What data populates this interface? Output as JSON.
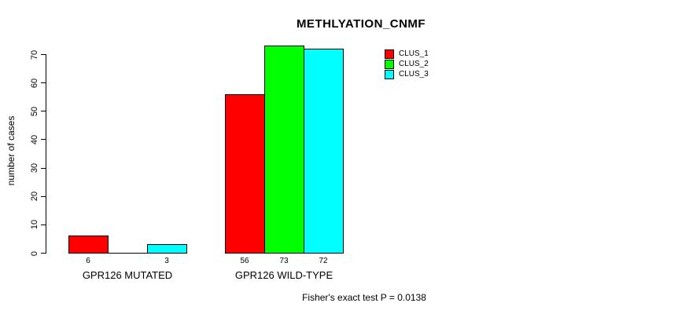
{
  "page": {
    "background_color": "#FFFFFF",
    "text_color": "#000000",
    "axis_color": "#000000"
  },
  "chart_data": {
    "type": "bar",
    "title": "METHLYATION_CNMF",
    "xlabel": "",
    "ylabel": "number of cases",
    "ylim": [
      0,
      70
    ],
    "yticks": [
      0,
      10,
      20,
      30,
      40,
      50,
      60,
      70
    ],
    "grid": false,
    "legend_position": "top-right",
    "categories": [
      "GPR126 MUTATED",
      "GPR126 WILD-TYPE"
    ],
    "series": [
      {
        "name": "CLUS_1",
        "color": "#FF0000",
        "values": [
          6,
          56
        ]
      },
      {
        "name": "CLUS_2",
        "color": "#00FF00",
        "values": [
          0,
          73
        ]
      },
      {
        "name": "CLUS_3",
        "color": "#00FFFF",
        "values": [
          3,
          72
        ]
      }
    ],
    "bar_value_labels": [
      [
        "6",
        "",
        "3"
      ],
      [
        "56",
        "73",
        "72"
      ]
    ],
    "annotation": "Fisher's exact test P = 0.0138"
  }
}
